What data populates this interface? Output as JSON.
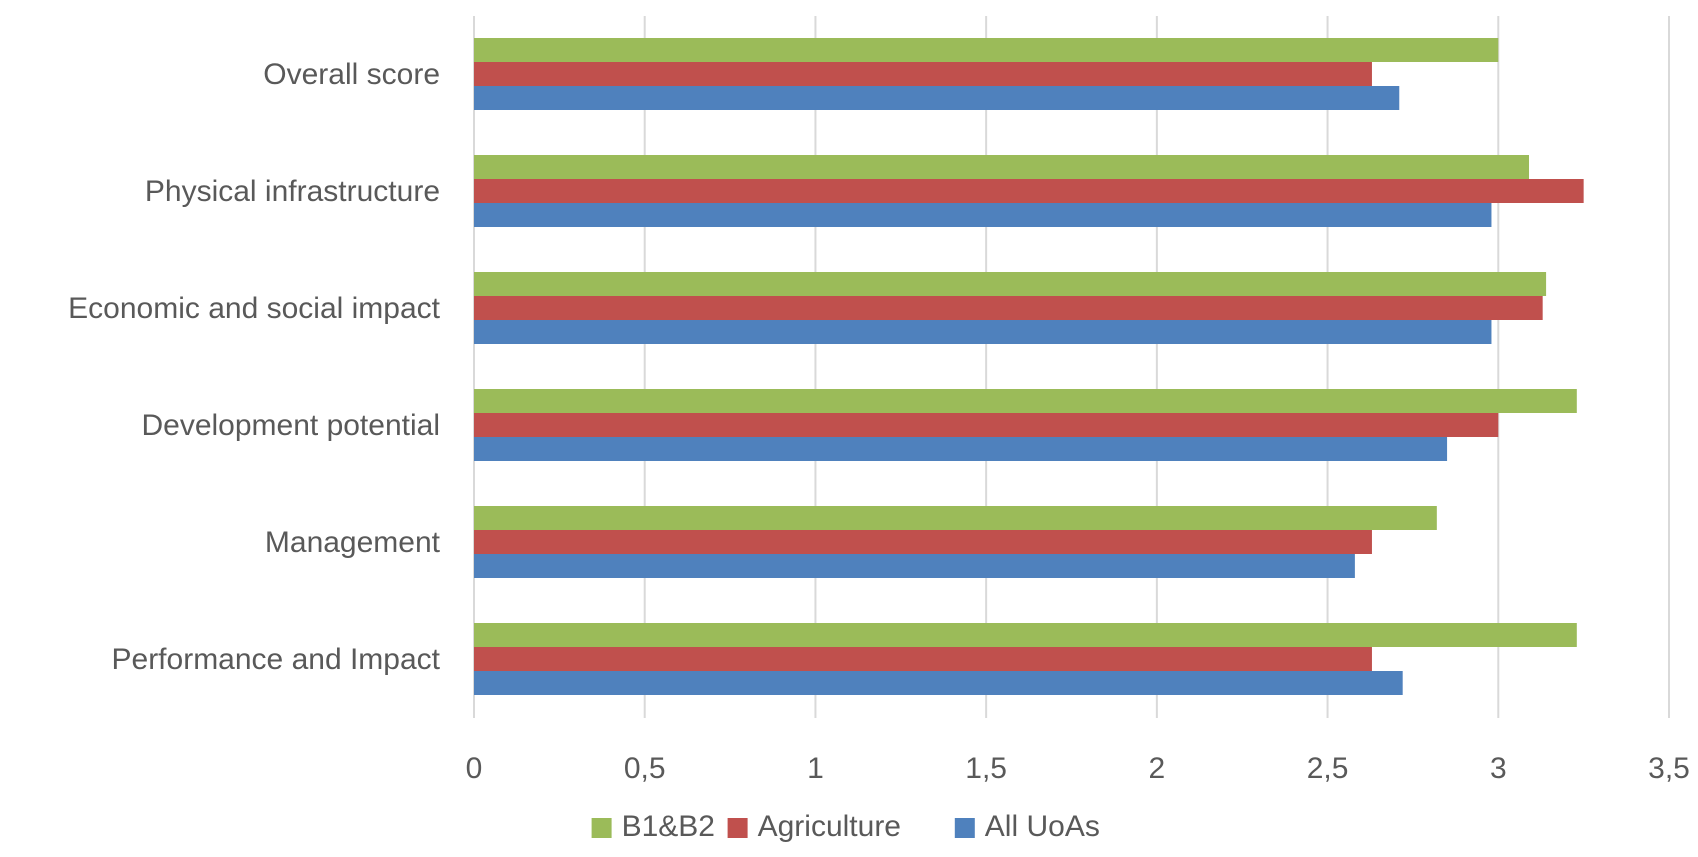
{
  "chart_data": {
    "type": "bar",
    "orientation": "horizontal",
    "categories": [
      "Overall score",
      "Physical infrastructure",
      "Economic and social impact",
      "Development potential",
      "Management",
      "Performance and Impact"
    ],
    "series": [
      {
        "name": "B1&B2",
        "color": "#9BBB59",
        "values": [
          3.0,
          3.09,
          3.14,
          3.23,
          2.82,
          3.23
        ]
      },
      {
        "name": "Agriculture",
        "color": "#C0504D",
        "values": [
          2.63,
          3.25,
          3.13,
          3.0,
          2.63,
          2.63
        ]
      },
      {
        "name": "All UoAs",
        "color": "#4F81BD",
        "values": [
          2.71,
          2.98,
          2.98,
          2.85,
          2.58,
          2.72
        ]
      }
    ],
    "x_ticks": [
      "0",
      "0,5",
      "1",
      "1,5",
      "2",
      "2,5",
      "3",
      "3,5"
    ],
    "xlim": [
      0,
      3.5
    ],
    "grid": "vertical",
    "legend_position": "bottom",
    "title": "",
    "xlabel": "",
    "ylabel": ""
  }
}
